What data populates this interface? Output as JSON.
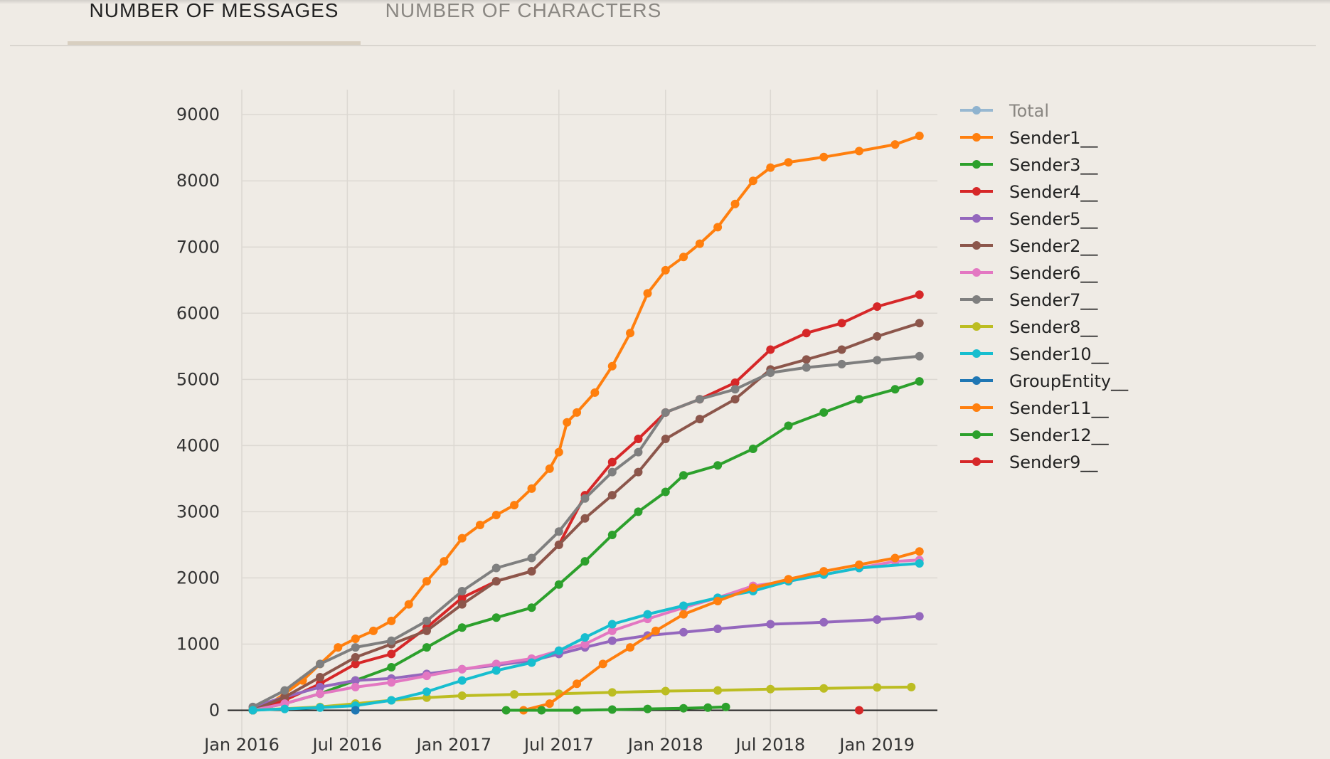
{
  "tabs": [
    {
      "label": "NUMBER OF MESSAGES",
      "active": true
    },
    {
      "label": "NUMBER OF CHARACTERS",
      "active": false
    }
  ],
  "chart_data": {
    "type": "line",
    "title": "",
    "xlabel": "",
    "ylabel": "",
    "ylim": [
      -500,
      9400
    ],
    "xlim": [
      "2016-01-01",
      "2019-04-15"
    ],
    "y_ticks": [
      0,
      1000,
      2000,
      3000,
      4000,
      5000,
      6000,
      7000,
      8000,
      9000
    ],
    "x_ticks": [
      {
        "date": "2016-01-01",
        "label": "Jan 2016"
      },
      {
        "date": "2016-07-01",
        "label": "Jul 2016"
      },
      {
        "date": "2017-01-01",
        "label": "Jan 2017"
      },
      {
        "date": "2017-07-01",
        "label": "Jul 2017"
      },
      {
        "date": "2018-01-01",
        "label": "Jan 2018"
      },
      {
        "date": "2018-07-01",
        "label": "Jul 2018"
      },
      {
        "date": "2019-01-01",
        "label": "Jan 2019"
      }
    ],
    "grid": true,
    "legend_position": "top-right",
    "series": [
      {
        "name": "Total",
        "color": "#8fb3cf",
        "dimmed": true,
        "points": []
      },
      {
        "name": "Sender1__",
        "color": "#ff7f0e",
        "points": [
          [
            "2016-01-20",
            0
          ],
          [
            "2016-02-15",
            80
          ],
          [
            "2016-03-15",
            250
          ],
          [
            "2016-04-15",
            450
          ],
          [
            "2016-05-15",
            700
          ],
          [
            "2016-06-15",
            950
          ],
          [
            "2016-07-15",
            1080
          ],
          [
            "2016-08-15",
            1200
          ],
          [
            "2016-09-15",
            1350
          ],
          [
            "2016-10-15",
            1600
          ],
          [
            "2016-11-15",
            1950
          ],
          [
            "2016-12-15",
            2250
          ],
          [
            "2017-01-15",
            2600
          ],
          [
            "2017-02-15",
            2800
          ],
          [
            "2017-03-15",
            2950
          ],
          [
            "2017-04-15",
            3100
          ],
          [
            "2017-05-15",
            3350
          ],
          [
            "2017-06-15",
            3650
          ],
          [
            "2017-07-01",
            3900
          ],
          [
            "2017-07-15",
            4350
          ],
          [
            "2017-08-01",
            4500
          ],
          [
            "2017-09-01",
            4800
          ],
          [
            "2017-10-01",
            5200
          ],
          [
            "2017-11-01",
            5700
          ],
          [
            "2017-12-01",
            6300
          ],
          [
            "2018-01-01",
            6650
          ],
          [
            "2018-02-01",
            6850
          ],
          [
            "2018-03-01",
            7050
          ],
          [
            "2018-04-01",
            7300
          ],
          [
            "2018-05-01",
            7650
          ],
          [
            "2018-06-01",
            8000
          ],
          [
            "2018-07-01",
            8200
          ],
          [
            "2018-08-01",
            8280
          ],
          [
            "2018-10-01",
            8360
          ],
          [
            "2018-12-01",
            8450
          ],
          [
            "2019-02-01",
            8550
          ],
          [
            "2019-03-15",
            8680
          ]
        ]
      },
      {
        "name": "Sender3__",
        "color": "#2ca02c",
        "points": [
          [
            "2016-01-20",
            0
          ],
          [
            "2016-03-15",
            100
          ],
          [
            "2016-05-15",
            250
          ],
          [
            "2016-07-15",
            450
          ],
          [
            "2016-09-15",
            650
          ],
          [
            "2016-11-15",
            950
          ],
          [
            "2017-01-15",
            1250
          ],
          [
            "2017-03-15",
            1400
          ],
          [
            "2017-05-15",
            1550
          ],
          [
            "2017-07-01",
            1900
          ],
          [
            "2017-08-15",
            2250
          ],
          [
            "2017-10-01",
            2650
          ],
          [
            "2017-11-15",
            3000
          ],
          [
            "2018-01-01",
            3300
          ],
          [
            "2018-02-01",
            3550
          ],
          [
            "2018-04-01",
            3700
          ],
          [
            "2018-06-01",
            3950
          ],
          [
            "2018-08-01",
            4300
          ],
          [
            "2018-10-01",
            4500
          ],
          [
            "2018-12-01",
            4700
          ],
          [
            "2019-02-01",
            4850
          ],
          [
            "2019-03-15",
            4970
          ]
        ]
      },
      {
        "name": "Sender4__",
        "color": "#d62728",
        "points": [
          [
            "2016-01-20",
            0
          ],
          [
            "2016-03-15",
            150
          ],
          [
            "2016-05-15",
            400
          ],
          [
            "2016-07-15",
            700
          ],
          [
            "2016-09-15",
            850
          ],
          [
            "2016-11-15",
            1250
          ],
          [
            "2017-01-15",
            1700
          ],
          [
            "2017-03-15",
            1950
          ],
          [
            "2017-05-15",
            2100
          ],
          [
            "2017-07-01",
            2500
          ],
          [
            "2017-08-15",
            3250
          ],
          [
            "2017-10-01",
            3750
          ],
          [
            "2017-11-15",
            4100
          ],
          [
            "2018-01-01",
            4500
          ],
          [
            "2018-03-01",
            4700
          ],
          [
            "2018-05-01",
            4950
          ],
          [
            "2018-07-01",
            5450
          ],
          [
            "2018-09-01",
            5700
          ],
          [
            "2018-11-01",
            5850
          ],
          [
            "2019-01-01",
            6100
          ],
          [
            "2019-03-15",
            6280
          ]
        ]
      },
      {
        "name": "Sender5__",
        "color": "#9467bd",
        "points": [
          [
            "2016-01-20",
            50
          ],
          [
            "2016-03-15",
            200
          ],
          [
            "2016-05-15",
            350
          ],
          [
            "2016-07-15",
            450
          ],
          [
            "2016-09-15",
            480
          ],
          [
            "2016-11-15",
            550
          ],
          [
            "2017-01-15",
            620
          ],
          [
            "2017-03-15",
            680
          ],
          [
            "2017-05-15",
            750
          ],
          [
            "2017-07-01",
            850
          ],
          [
            "2017-08-15",
            950
          ],
          [
            "2017-10-01",
            1050
          ],
          [
            "2017-12-01",
            1130
          ],
          [
            "2018-02-01",
            1180
          ],
          [
            "2018-04-01",
            1230
          ],
          [
            "2018-07-01",
            1300
          ],
          [
            "2018-10-01",
            1330
          ],
          [
            "2019-01-01",
            1370
          ],
          [
            "2019-03-15",
            1420
          ]
        ]
      },
      {
        "name": "Sender2__",
        "color": "#8c564b",
        "points": [
          [
            "2016-01-20",
            0
          ],
          [
            "2016-03-15",
            200
          ],
          [
            "2016-05-15",
            500
          ],
          [
            "2016-07-15",
            800
          ],
          [
            "2016-09-15",
            1000
          ],
          [
            "2016-11-15",
            1200
          ],
          [
            "2017-01-15",
            1600
          ],
          [
            "2017-03-15",
            1950
          ],
          [
            "2017-05-15",
            2100
          ],
          [
            "2017-07-01",
            2500
          ],
          [
            "2017-08-15",
            2900
          ],
          [
            "2017-10-01",
            3250
          ],
          [
            "2017-11-15",
            3600
          ],
          [
            "2018-01-01",
            4100
          ],
          [
            "2018-03-01",
            4400
          ],
          [
            "2018-05-01",
            4700
          ],
          [
            "2018-07-01",
            5150
          ],
          [
            "2018-09-01",
            5300
          ],
          [
            "2018-11-01",
            5450
          ],
          [
            "2019-01-01",
            5650
          ],
          [
            "2019-03-15",
            5850
          ]
        ]
      },
      {
        "name": "Sender6__",
        "color": "#e377c2",
        "points": [
          [
            "2016-01-20",
            0
          ],
          [
            "2016-03-15",
            100
          ],
          [
            "2016-05-15",
            250
          ],
          [
            "2016-07-15",
            350
          ],
          [
            "2016-09-15",
            420
          ],
          [
            "2016-11-15",
            520
          ],
          [
            "2017-01-15",
            620
          ],
          [
            "2017-03-15",
            700
          ],
          [
            "2017-05-15",
            780
          ],
          [
            "2017-07-01",
            900
          ],
          [
            "2017-08-15",
            1000
          ],
          [
            "2017-10-01",
            1200
          ],
          [
            "2017-12-01",
            1380
          ],
          [
            "2018-02-01",
            1550
          ],
          [
            "2018-04-01",
            1700
          ],
          [
            "2018-06-01",
            1880
          ],
          [
            "2018-08-01",
            1950
          ],
          [
            "2018-10-01",
            2050
          ],
          [
            "2018-12-01",
            2150
          ],
          [
            "2019-02-01",
            2250
          ],
          [
            "2019-03-15",
            2270
          ]
        ]
      },
      {
        "name": "Sender7__",
        "color": "#7f7f7f",
        "points": [
          [
            "2016-01-20",
            50
          ],
          [
            "2016-03-15",
            300
          ],
          [
            "2016-05-15",
            700
          ],
          [
            "2016-07-15",
            950
          ],
          [
            "2016-09-15",
            1050
          ],
          [
            "2016-11-15",
            1350
          ],
          [
            "2017-01-15",
            1800
          ],
          [
            "2017-03-15",
            2150
          ],
          [
            "2017-05-15",
            2300
          ],
          [
            "2017-07-01",
            2700
          ],
          [
            "2017-08-15",
            3200
          ],
          [
            "2017-10-01",
            3600
          ],
          [
            "2017-11-15",
            3900
          ],
          [
            "2018-01-01",
            4500
          ],
          [
            "2018-03-01",
            4700
          ],
          [
            "2018-05-01",
            4850
          ],
          [
            "2018-07-01",
            5100
          ],
          [
            "2018-09-01",
            5180
          ],
          [
            "2018-11-01",
            5230
          ],
          [
            "2019-01-01",
            5290
          ],
          [
            "2019-03-15",
            5350
          ]
        ]
      },
      {
        "name": "Sender8__",
        "color": "#bcbd22",
        "points": [
          [
            "2016-01-20",
            0
          ],
          [
            "2016-05-15",
            50
          ],
          [
            "2016-07-15",
            100
          ],
          [
            "2016-09-15",
            150
          ],
          [
            "2016-11-15",
            190
          ],
          [
            "2017-01-15",
            220
          ],
          [
            "2017-04-15",
            240
          ],
          [
            "2017-07-01",
            250
          ],
          [
            "2017-10-01",
            270
          ],
          [
            "2018-01-01",
            290
          ],
          [
            "2018-04-01",
            300
          ],
          [
            "2018-07-01",
            320
          ],
          [
            "2018-10-01",
            330
          ],
          [
            "2019-01-01",
            345
          ],
          [
            "2019-03-01",
            350
          ]
        ]
      },
      {
        "name": "Sender10__",
        "color": "#17becf",
        "points": [
          [
            "2016-01-20",
            0
          ],
          [
            "2016-03-15",
            20
          ],
          [
            "2016-05-15",
            40
          ],
          [
            "2016-07-15",
            70
          ],
          [
            "2016-09-15",
            150
          ],
          [
            "2016-11-15",
            280
          ],
          [
            "2017-01-15",
            450
          ],
          [
            "2017-03-15",
            600
          ],
          [
            "2017-05-15",
            720
          ],
          [
            "2017-07-01",
            900
          ],
          [
            "2017-08-15",
            1100
          ],
          [
            "2017-10-01",
            1300
          ],
          [
            "2017-12-01",
            1450
          ],
          [
            "2018-02-01",
            1580
          ],
          [
            "2018-04-01",
            1700
          ],
          [
            "2018-06-01",
            1800
          ],
          [
            "2018-08-01",
            1950
          ],
          [
            "2018-10-01",
            2050
          ],
          [
            "2018-12-01",
            2150
          ],
          [
            "2019-03-15",
            2220
          ]
        ]
      },
      {
        "name": "GroupEntity__",
        "color": "#1f77b4",
        "points": [
          [
            "2016-07-15",
            0
          ]
        ]
      },
      {
        "name": "Sender11__",
        "color": "#ff7f0e",
        "points": [
          [
            "2017-05-01",
            0
          ],
          [
            "2017-06-15",
            100
          ],
          [
            "2017-08-01",
            400
          ],
          [
            "2017-09-15",
            700
          ],
          [
            "2017-11-01",
            950
          ],
          [
            "2017-12-15",
            1200
          ],
          [
            "2018-02-01",
            1450
          ],
          [
            "2018-04-01",
            1650
          ],
          [
            "2018-06-01",
            1850
          ],
          [
            "2018-08-01",
            1980
          ],
          [
            "2018-10-01",
            2100
          ],
          [
            "2018-12-01",
            2200
          ],
          [
            "2019-02-01",
            2300
          ],
          [
            "2019-03-15",
            2400
          ]
        ]
      },
      {
        "name": "Sender12__",
        "color": "#2ca02c",
        "points": [
          [
            "2017-04-01",
            0
          ],
          [
            "2017-06-01",
            0
          ],
          [
            "2017-08-01",
            0
          ],
          [
            "2017-10-01",
            10
          ],
          [
            "2017-12-01",
            20
          ],
          [
            "2018-02-01",
            30
          ],
          [
            "2018-03-15",
            40
          ],
          [
            "2018-04-15",
            50
          ]
        ]
      },
      {
        "name": "Sender9__",
        "color": "#d62728",
        "points": [
          [
            "2018-12-01",
            0
          ]
        ]
      }
    ]
  }
}
